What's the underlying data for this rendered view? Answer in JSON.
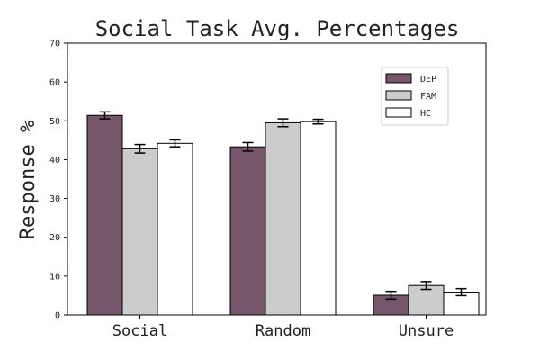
{
  "chart_data": {
    "type": "bar",
    "title": "Social Task Avg. Percentages",
    "xlabel": "",
    "ylabel": "Response %",
    "ylim": [
      0,
      70
    ],
    "yticks": [
      0,
      10,
      20,
      30,
      40,
      50,
      60,
      70
    ],
    "categories": [
      "Social",
      "Random",
      "Unsure"
    ],
    "series": [
      {
        "name": "DEP",
        "color": "#76566b",
        "values": [
          51.4,
          43.3,
          5.1
        ],
        "errors": [
          0.9,
          1.1,
          1.0
        ]
      },
      {
        "name": "FAM",
        "color": "#cccccc",
        "values": [
          42.8,
          49.5,
          7.6
        ],
        "errors": [
          1.1,
          1.0,
          1.0
        ]
      },
      {
        "name": "HC",
        "color": "#ffffff",
        "values": [
          44.2,
          49.8,
          5.9
        ],
        "errors": [
          0.9,
          0.6,
          0.9
        ]
      }
    ],
    "legend_position": "top-right",
    "grid": false
  }
}
